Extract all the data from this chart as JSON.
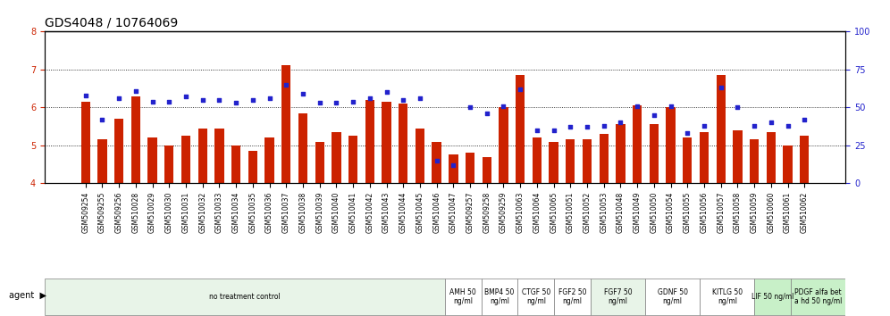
{
  "title": "GDS4048 / 10764069",
  "samples": [
    "GSM509254",
    "GSM509255",
    "GSM509256",
    "GSM510028",
    "GSM510029",
    "GSM510030",
    "GSM510031",
    "GSM510032",
    "GSM510033",
    "GSM510034",
    "GSM510035",
    "GSM510036",
    "GSM510037",
    "GSM510038",
    "GSM510039",
    "GSM510040",
    "GSM510041",
    "GSM510042",
    "GSM510043",
    "GSM510044",
    "GSM510045",
    "GSM510046",
    "GSM510047",
    "GSM509257",
    "GSM509258",
    "GSM509259",
    "GSM510063",
    "GSM510064",
    "GSM510065",
    "GSM510051",
    "GSM510052",
    "GSM510053",
    "GSM510048",
    "GSM510049",
    "GSM510050",
    "GSM510054",
    "GSM510055",
    "GSM510056",
    "GSM510057",
    "GSM510058",
    "GSM510059",
    "GSM510060",
    "GSM510061",
    "GSM510062"
  ],
  "bar_values": [
    6.15,
    5.15,
    5.7,
    6.3,
    5.2,
    5.0,
    5.25,
    5.45,
    5.45,
    5.0,
    4.85,
    5.2,
    7.12,
    5.85,
    5.1,
    5.35,
    5.25,
    6.2,
    6.15,
    6.1,
    5.45,
    5.1,
    4.75,
    4.8,
    4.7,
    6.0,
    6.85,
    5.2,
    5.1,
    5.15,
    5.15,
    5.3,
    5.55,
    6.05,
    5.55,
    6.0,
    5.2,
    5.35,
    6.85,
    5.4,
    5.15,
    5.35,
    5.0,
    5.25
  ],
  "dot_values": [
    58,
    42,
    56,
    61,
    54,
    54,
    57,
    55,
    55,
    53,
    55,
    56,
    65,
    59,
    53,
    53,
    54,
    56,
    60,
    55,
    56,
    15,
    12,
    50,
    46,
    51,
    62,
    35,
    35,
    37,
    37,
    38,
    40,
    51,
    45,
    51,
    33,
    38,
    63,
    50,
    38,
    40,
    38,
    42
  ],
  "groups": [
    {
      "label": "no treatment control",
      "start": 0,
      "end": 22,
      "color": "#e8f4e8"
    },
    {
      "label": "AMH 50\nng/ml",
      "start": 22,
      "end": 24,
      "color": "#ffffff"
    },
    {
      "label": "BMP4 50\nng/ml",
      "start": 24,
      "end": 26,
      "color": "#ffffff"
    },
    {
      "label": "CTGF 50\nng/ml",
      "start": 26,
      "end": 28,
      "color": "#ffffff"
    },
    {
      "label": "FGF2 50\nng/ml",
      "start": 28,
      "end": 30,
      "color": "#ffffff"
    },
    {
      "label": "FGF7 50\nng/ml",
      "start": 30,
      "end": 33,
      "color": "#e8f4e8"
    },
    {
      "label": "GDNF 50\nng/ml",
      "start": 33,
      "end": 36,
      "color": "#ffffff"
    },
    {
      "label": "KITLG 50\nng/ml",
      "start": 36,
      "end": 39,
      "color": "#ffffff"
    },
    {
      "label": "LIF 50 ng/ml",
      "start": 39,
      "end": 41,
      "color": "#c8f0c8"
    },
    {
      "label": "PDGF alfa bet\na hd 50 ng/ml",
      "start": 41,
      "end": 44,
      "color": "#c8f0c8"
    }
  ],
  "ylim_left": [
    4.0,
    8.0
  ],
  "ylim_right": [
    0,
    100
  ],
  "yticks_left": [
    4,
    5,
    6,
    7,
    8
  ],
  "yticks_right": [
    0,
    25,
    50,
    75,
    100
  ],
  "bar_color": "#cc2200",
  "dot_color": "#2222cc",
  "bar_color_alpha": 1.0,
  "background_color": "#ffffff",
  "title_fontsize": 10,
  "tick_fontsize": 6,
  "ylabel_left_color": "#cc2200",
  "ylabel_right_color": "#2222cc"
}
